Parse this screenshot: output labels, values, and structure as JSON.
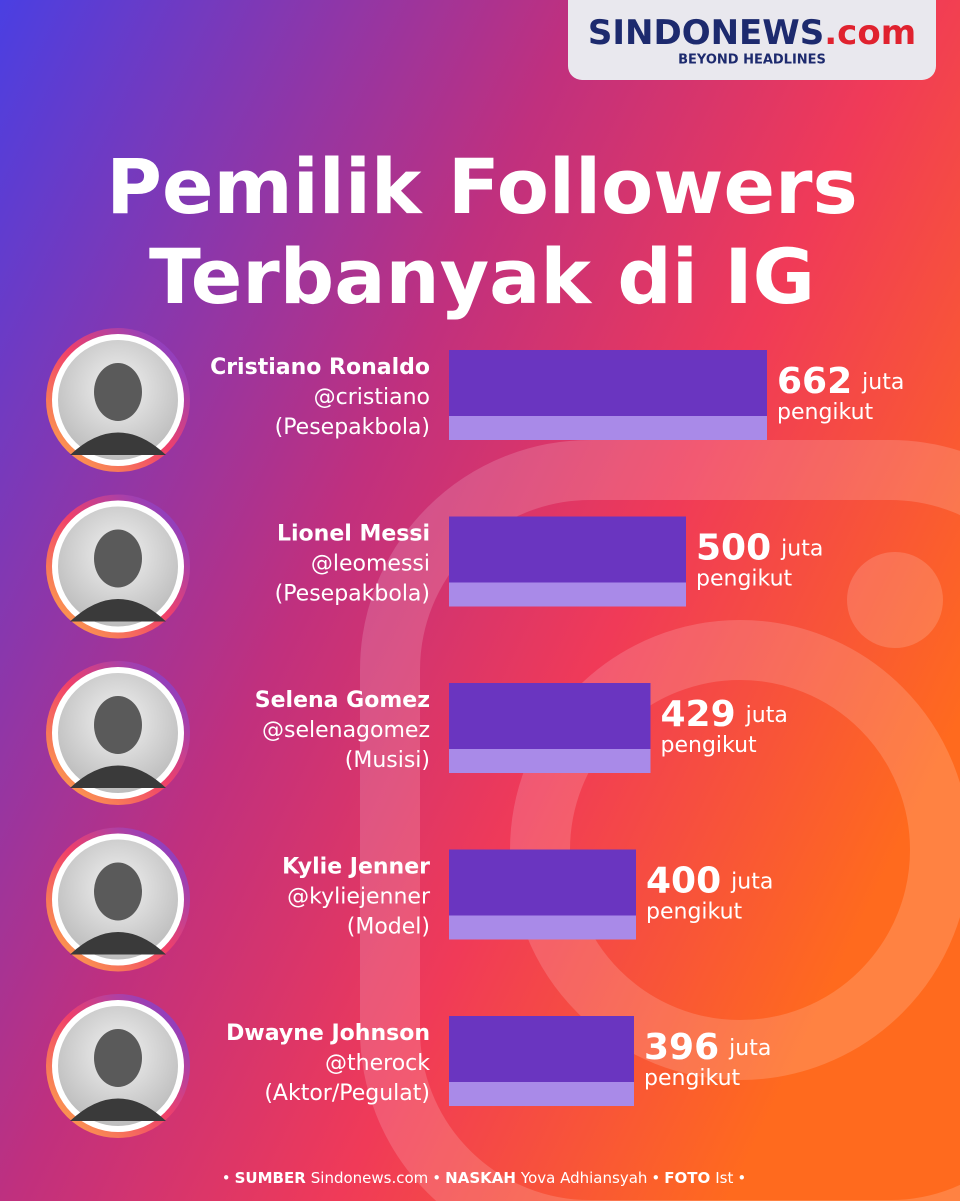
{
  "logo": {
    "brand": "SINDONEWS",
    "domain": ".com",
    "tagline": "BEYOND HEADLINES"
  },
  "chart_data": {
    "type": "bar",
    "title": [
      "Pemilik Followers",
      "Terbanyak di IG"
    ],
    "categories": [
      "Cristiano Ronaldo",
      "Lionel Messi",
      "Selena Gomez",
      "Kylie Jenner",
      "Dwayne Johnson"
    ],
    "handles": [
      "@cristiano",
      "@leomessi",
      "@selenagomez",
      "@kyliejenner",
      "@therock"
    ],
    "professions": [
      "(Pesepakbola)",
      "(Pesepakbola)",
      "(Musisi)",
      "(Model)",
      "(Aktor/Pegulat)"
    ],
    "values": [
      662,
      500,
      429,
      400,
      396
    ],
    "unit": "juta",
    "unit_label": "pengikut",
    "color": "#6a35c0",
    "accent_color": "#a98ae8"
  },
  "footer": {
    "separator": "•",
    "parts": [
      {
        "label": "SUMBER",
        "text": "Sindonews.com"
      },
      {
        "label": "NASKAH",
        "text": "Yova Adhiansyah"
      },
      {
        "label": "FOTO",
        "text": "Ist"
      }
    ]
  }
}
